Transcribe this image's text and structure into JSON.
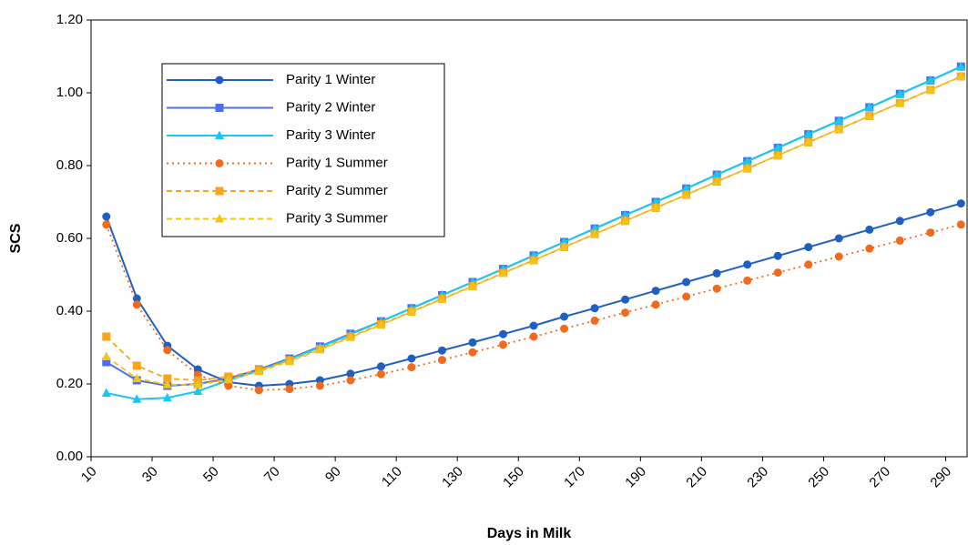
{
  "chart_data": {
    "type": "line",
    "x_label": "Days in Milk",
    "y_label": "SCS",
    "x": [
      15,
      25,
      35,
      45,
      55,
      65,
      75,
      85,
      95,
      105,
      115,
      125,
      135,
      145,
      155,
      165,
      175,
      185,
      195,
      205,
      215,
      225,
      235,
      245,
      255,
      265,
      275,
      285,
      295
    ],
    "xlim": [
      10,
      297
    ],
    "xticks": [
      10,
      30,
      50,
      70,
      90,
      110,
      130,
      150,
      170,
      190,
      210,
      230,
      250,
      270,
      290
    ],
    "ylim": [
      0,
      1.2
    ],
    "yticks": [
      {
        "value": 0,
        "label": "0.00"
      },
      {
        "value": 0.2,
        "label": "0.20"
      },
      {
        "value": 0.4,
        "label": "0.40"
      },
      {
        "value": 0.6,
        "label": "0.60"
      },
      {
        "value": 0.8,
        "label": "0.80"
      },
      {
        "value": 1,
        "label": "1.00"
      },
      {
        "value": 1.2,
        "label": "1.20"
      }
    ],
    "grid": false,
    "series": [
      {
        "name": "Parity 1 Winter",
        "color": "#1f5fbf",
        "marker": "circle",
        "dash": "solid",
        "values": [
          0.66,
          0.435,
          0.305,
          0.24,
          0.205,
          0.195,
          0.2,
          0.21,
          0.228,
          0.248,
          0.27,
          0.292,
          0.314,
          0.337,
          0.36,
          0.385,
          0.408,
          0.432,
          0.456,
          0.48,
          0.504,
          0.528,
          0.552,
          0.576,
          0.6,
          0.624,
          0.648,
          0.672,
          0.696
        ]
      },
      {
        "name": "Parity 2 Winter",
        "color": "#4f6fe8",
        "marker": "square",
        "dash": "solid",
        "values": [
          0.26,
          0.21,
          0.195,
          0.2,
          0.215,
          0.24,
          0.27,
          0.303,
          0.338,
          0.372,
          0.408,
          0.444,
          0.48,
          0.516,
          0.553,
          0.59,
          0.627,
          0.664,
          0.7,
          0.737,
          0.775,
          0.812,
          0.849,
          0.886,
          0.923,
          0.96,
          0.997,
          1.034,
          1.072
        ]
      },
      {
        "name": "Parity 3 Winter",
        "color": "#18c8f0",
        "marker": "triangle",
        "dash": "solid",
        "values": [
          0.175,
          0.158,
          0.162,
          0.18,
          0.21,
          0.236,
          0.268,
          0.301,
          0.336,
          0.372,
          0.408,
          0.444,
          0.48,
          0.516,
          0.553,
          0.59,
          0.627,
          0.664,
          0.7,
          0.737,
          0.775,
          0.812,
          0.849,
          0.886,
          0.923,
          0.96,
          0.997,
          1.034,
          1.072
        ]
      },
      {
        "name": "Parity 1 Summer",
        "color": "#f26b1d",
        "marker": "circle",
        "dash": "dotted",
        "values": [
          0.638,
          0.418,
          0.293,
          0.225,
          0.195,
          0.183,
          0.186,
          0.195,
          0.21,
          0.227,
          0.246,
          0.266,
          0.287,
          0.308,
          0.33,
          0.352,
          0.374,
          0.396,
          0.418,
          0.44,
          0.462,
          0.484,
          0.506,
          0.528,
          0.55,
          0.572,
          0.594,
          0.616,
          0.638
        ]
      },
      {
        "name": "Parity 2 Summer",
        "color": "#f8a51b",
        "marker": "square",
        "dash": "dashed",
        "values": [
          0.33,
          0.25,
          0.215,
          0.21,
          0.22,
          0.238,
          0.265,
          0.296,
          0.33,
          0.364,
          0.399,
          0.434,
          0.469,
          0.505,
          0.54,
          0.576,
          0.612,
          0.648,
          0.684,
          0.72,
          0.756,
          0.792,
          0.828,
          0.864,
          0.9,
          0.936,
          0.972,
          1.008,
          1.045
        ]
      },
      {
        "name": "Parity 3 Summer",
        "color": "#f2c418",
        "marker": "triangle",
        "dash": "dashed",
        "values": [
          0.275,
          0.215,
          0.198,
          0.198,
          0.212,
          0.234,
          0.262,
          0.294,
          0.328,
          0.362,
          0.398,
          0.433,
          0.468,
          0.504,
          0.54,
          0.576,
          0.612,
          0.648,
          0.684,
          0.72,
          0.756,
          0.792,
          0.828,
          0.864,
          0.9,
          0.936,
          0.972,
          1.008,
          1.045
        ]
      }
    ]
  }
}
